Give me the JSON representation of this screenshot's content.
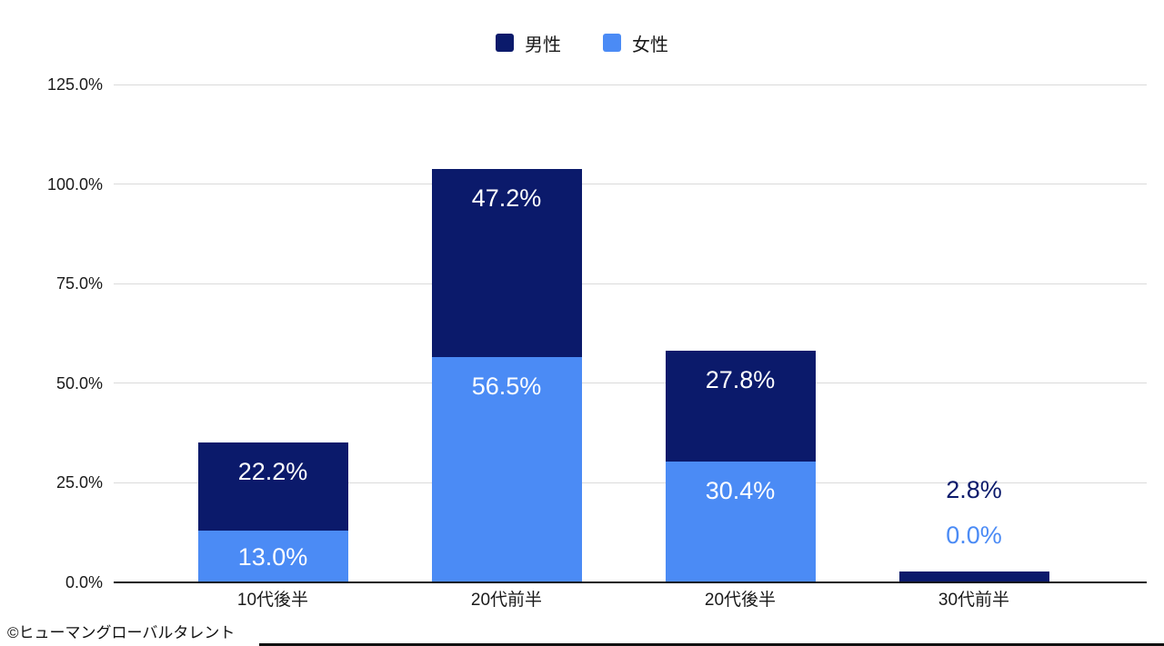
{
  "legend": {
    "items": [
      {
        "id": "male",
        "label": "男性",
        "color": "#0b1a6b"
      },
      {
        "id": "female",
        "label": "女性",
        "color": "#4b8bf5"
      }
    ]
  },
  "chart_data": {
    "type": "bar",
    "stacked": true,
    "title": "",
    "categories": [
      "10代後半",
      "20代前半",
      "20代後半",
      "30代前半"
    ],
    "series": [
      {
        "name": "女性",
        "color": "#4b8bf5",
        "values": [
          13.0,
          56.5,
          30.4,
          0.0
        ],
        "labels": [
          "13.0%",
          "56.5%",
          "30.4%",
          "0.0%"
        ]
      },
      {
        "name": "男性",
        "color": "#0b1a6b",
        "values": [
          22.2,
          47.2,
          27.8,
          2.8
        ],
        "labels": [
          "22.2%",
          "47.2%",
          "27.8%",
          "2.8%"
        ]
      }
    ],
    "y_axis": {
      "max": 125,
      "ticks": [
        {
          "value": 0,
          "label": "0.0%"
        },
        {
          "value": 25,
          "label": "25.0%"
        },
        {
          "value": 50,
          "label": "50.0%"
        },
        {
          "value": 75,
          "label": "75.0%"
        },
        {
          "value": 100,
          "label": "100.0%"
        },
        {
          "value": 125,
          "label": "125.0%"
        }
      ]
    },
    "legend_position": "top",
    "grid": true,
    "value_label_color_inside": "#ffffff"
  },
  "footer": {
    "credit": "©ヒューマングローバルタレント"
  }
}
